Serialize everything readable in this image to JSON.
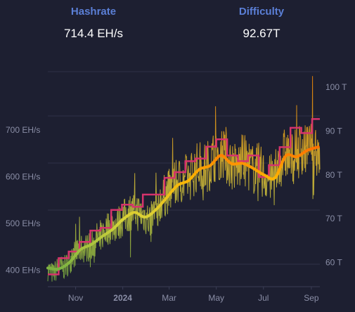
{
  "stats": {
    "hashrate": {
      "label": "Hashrate",
      "value": "714.4 EH/s"
    },
    "difficulty": {
      "label": "Difficulty",
      "value": "92.67T"
    }
  },
  "colors": {
    "background": "#1d1f31",
    "grid": "#2f3146",
    "label": "#5b7fd6",
    "tick": "#8a8ea6",
    "difficulty_line": "#d6336c",
    "hashrate_low": "#8bc34a",
    "hashrate_high": "#ff8c00"
  },
  "chart_data": {
    "type": "line",
    "title": "",
    "left_axis": {
      "unit": "EH/s",
      "ticks": [
        400,
        500,
        600,
        700
      ],
      "tick_labels": [
        "400 EH/s",
        "500 EH/s",
        "600 EH/s",
        "700 EH/s"
      ],
      "range": [
        365,
        825
      ]
    },
    "right_axis": {
      "unit": "T",
      "ticks": [
        60,
        70,
        80,
        90,
        100
      ],
      "tick_labels": [
        "60 T",
        "70 T",
        "80 T",
        "90 T",
        "100 T"
      ],
      "range": [
        54.5,
        103.5
      ]
    },
    "x_axis": {
      "ticks": [
        {
          "label": "Nov",
          "date": "2023-11-01",
          "bold": false
        },
        {
          "label": "2024",
          "date": "2024-01-01",
          "bold": true
        },
        {
          "label": "Mar",
          "date": "2024-03-01",
          "bold": false
        },
        {
          "label": "May",
          "date": "2024-05-01",
          "bold": false
        },
        {
          "label": "Jul",
          "date": "2024-07-01",
          "bold": false
        },
        {
          "label": "Sep",
          "date": "2024-09-01",
          "bold": false
        }
      ],
      "range": [
        "2023-09-26",
        "2024-09-12"
      ]
    },
    "legend": "none",
    "grid": true,
    "series": [
      {
        "axis": "right",
        "step": true,
        "x": [
          "2023-09-26",
          "2023-10-10",
          "2023-10-23",
          "2023-11-06",
          "2023-11-20",
          "2023-12-03",
          "2023-12-17",
          "2023-12-31",
          "2024-01-14",
          "2024-01-27",
          "2024-02-10",
          "2024-02-24",
          "2024-03-08",
          "2024-03-22",
          "2024-04-04",
          "2024-04-18",
          "2024-05-01",
          "2024-05-15",
          "2024-05-29",
          "2024-06-11",
          "2024-06-25",
          "2024-07-08",
          "2024-07-22",
          "2024-08-05",
          "2024-08-19",
          "2024-09-02",
          "2024-09-12"
        ],
        "values": [
          57.3,
          61.0,
          62.5,
          64.7,
          67.3,
          67.9,
          72.0,
          73.2,
          72.7,
          75.5,
          75.5,
          79.3,
          80.6,
          83.1,
          83.7,
          86.4,
          88.1,
          84.4,
          83.1,
          84.4,
          79.5,
          82.2,
          86.3,
          90.7,
          89.5,
          92.7,
          92.7
        ]
      },
      {
        "axis": "left",
        "type": "area",
        "points": [
          [
            "2023-09-26",
            402
          ],
          [
            "2023-10-03",
            392
          ],
          [
            "2023-10-10",
            408
          ],
          [
            "2023-10-17",
            405
          ],
          [
            "2023-10-24",
            418
          ],
          [
            "2023-10-31",
            437
          ],
          [
            "2023-11-07",
            445
          ],
          [
            "2023-11-14",
            448
          ],
          [
            "2023-11-21",
            452
          ],
          [
            "2023-11-28",
            468
          ],
          [
            "2023-12-05",
            476
          ],
          [
            "2023-12-12",
            490
          ],
          [
            "2023-12-19",
            496
          ],
          [
            "2023-12-26",
            500
          ],
          [
            "2024-01-02",
            512
          ],
          [
            "2024-01-09",
            522
          ],
          [
            "2024-01-16",
            530
          ],
          [
            "2024-01-23",
            522
          ],
          [
            "2024-01-30",
            516
          ],
          [
            "2024-02-06",
            504
          ],
          [
            "2024-02-13",
            534
          ],
          [
            "2024-02-20",
            551
          ],
          [
            "2024-02-27",
            566
          ],
          [
            "2024-03-05",
            575
          ],
          [
            "2024-03-12",
            591
          ],
          [
            "2024-03-19",
            592
          ],
          [
            "2024-03-26",
            598
          ],
          [
            "2024-04-02",
            612
          ],
          [
            "2024-04-09",
            625
          ],
          [
            "2024-04-16",
            620
          ],
          [
            "2024-04-23",
            628
          ],
          [
            "2024-04-30",
            650
          ],
          [
            "2024-05-07",
            655
          ],
          [
            "2024-05-14",
            639
          ],
          [
            "2024-05-21",
            626
          ],
          [
            "2024-05-28",
            618
          ],
          [
            "2024-06-04",
            637
          ],
          [
            "2024-06-11",
            628
          ],
          [
            "2024-06-18",
            615
          ],
          [
            "2024-06-25",
            620
          ],
          [
            "2024-07-02",
            602
          ],
          [
            "2024-07-09",
            596
          ],
          [
            "2024-07-16",
            602
          ],
          [
            "2024-07-23",
            633
          ],
          [
            "2024-07-30",
            651
          ],
          [
            "2024-08-06",
            640
          ],
          [
            "2024-08-13",
            648
          ],
          [
            "2024-08-20",
            665
          ],
          [
            "2024-08-27",
            653
          ],
          [
            "2024-09-03",
            675
          ],
          [
            "2024-09-10",
            655
          ]
        ]
      },
      {
        "axis": "left",
        "type": "line",
        "smoothed": true,
        "points": [
          [
            "2023-09-26",
            405
          ],
          [
            "2023-10-10",
            403
          ],
          [
            "2023-10-24",
            417
          ],
          [
            "2023-11-07",
            444
          ],
          [
            "2023-11-21",
            455
          ],
          [
            "2023-12-05",
            472
          ],
          [
            "2023-12-19",
            488
          ],
          [
            "2024-01-02",
            510
          ],
          [
            "2024-01-16",
            524
          ],
          [
            "2024-01-30",
            514
          ],
          [
            "2024-02-13",
            530
          ],
          [
            "2024-02-27",
            556
          ],
          [
            "2024-03-12",
            582
          ],
          [
            "2024-03-26",
            592
          ],
          [
            "2024-04-09",
            616
          ],
          [
            "2024-04-23",
            624
          ],
          [
            "2024-05-07",
            646
          ],
          [
            "2024-05-21",
            628
          ],
          [
            "2024-06-04",
            629
          ],
          [
            "2024-06-18",
            618
          ],
          [
            "2024-07-02",
            604
          ],
          [
            "2024-07-16",
            598
          ],
          [
            "2024-07-30",
            645
          ],
          [
            "2024-08-13",
            643
          ],
          [
            "2024-08-27",
            657
          ],
          [
            "2024-09-10",
            664
          ]
        ]
      }
    ]
  }
}
